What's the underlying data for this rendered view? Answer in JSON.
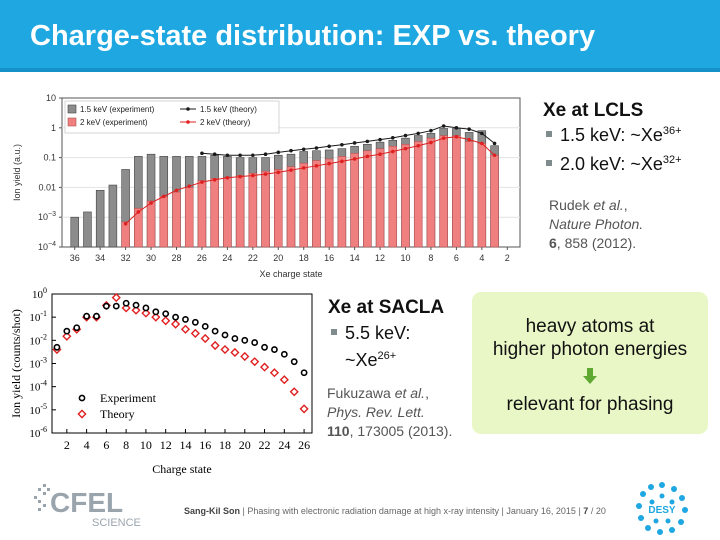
{
  "slide": {
    "title": "Charge-state distribution: EXP vs. theory"
  },
  "lcls": {
    "heading": "Xe at LCLS",
    "bullets": [
      {
        "text": "1.5 keV: ~Xe",
        "sup": "36+"
      },
      {
        "text": "2.0 keV: ~Xe",
        "sup": "32+"
      }
    ],
    "ref": {
      "authors": "Rudek",
      "etal": "et al.",
      "journal": "Nature Photon.",
      "volume": "6",
      "rest": ", 858 (2012)."
    }
  },
  "sacla": {
    "heading": "Xe at SACLA",
    "bullet": {
      "text1": "5.5 keV:",
      "text2": "~Xe",
      "sup": "26+"
    },
    "ref": {
      "authors": "Fukuzawa",
      "etal": "et al.",
      "journal": "Phys. Rev. Lett.",
      "volume": "110",
      "rest": ", 173005 (2013)."
    }
  },
  "note": {
    "line1": "heavy atoms at",
    "line2": "higher photon energies",
    "line3": "relevant for phasing",
    "arrow_color": "#5fa832"
  },
  "footer": {
    "author": "Sang-Kil Son",
    "text": "Phasing with electronic radiation damage at high x-ray intensity",
    "date": "January 16, 2015",
    "page": "7",
    "total": "/ 20",
    "cfel_logo": "CFEL",
    "cfel_sub": "SCIENCE",
    "desy_logo": "DESY"
  },
  "colors": {
    "header": "#1ea7e1",
    "exp15": "#8c8c8c",
    "exp20": "#f08080",
    "theory15": "#1a1a1a",
    "theory20": "#e02020"
  },
  "chart_data": [
    {
      "type": "bar",
      "title": "",
      "xlabel": "Xe charge state",
      "ylabel": "Ion yield (a.u.)",
      "yscale": "log",
      "ylim": [
        0.0001,
        10
      ],
      "xlim": [
        37,
        1
      ],
      "x_reversed": true,
      "xticks": [
        36,
        34,
        32,
        30,
        28,
        26,
        24,
        22,
        20,
        18,
        16,
        14,
        12,
        10,
        8,
        6,
        4,
        2
      ],
      "yticks": [
        {
          "v": 10,
          "b": "10",
          "e": ""
        },
        {
          "v": 1,
          "b": "1",
          "e": ""
        },
        {
          "v": 0.1,
          "b": "0.1",
          "e": ""
        },
        {
          "v": 0.01,
          "b": "0.01",
          "e": ""
        },
        {
          "v": 0.001,
          "b": "10",
          "e": "−3"
        },
        {
          "v": 0.0001,
          "b": "10",
          "e": "−4"
        }
      ],
      "legend": [
        "1.5 keV (experiment)",
        "2 keV (experiment)",
        "1.5 keV (theory)",
        "2 keV (theory)"
      ],
      "legend_position": "top-left",
      "charges": [
        36,
        35,
        34,
        33,
        32,
        31,
        30,
        29,
        28,
        27,
        26,
        25,
        24,
        23,
        22,
        21,
        20,
        19,
        18,
        17,
        16,
        15,
        14,
        13,
        12,
        11,
        10,
        9,
        8,
        7,
        6,
        5,
        4,
        3
      ],
      "series": [
        {
          "name": "1.5 keV (experiment)",
          "kind": "bar",
          "values": [
            0.001,
            0.0015,
            0.008,
            0.012,
            0.04,
            0.11,
            0.13,
            0.11,
            0.11,
            0.11,
            0.11,
            0.12,
            0.11,
            0.1,
            0.1,
            0.1,
            0.12,
            0.13,
            0.16,
            0.17,
            0.18,
            0.2,
            0.24,
            0.28,
            0.33,
            0.38,
            0.45,
            0.55,
            0.65,
            0.95,
            0.95,
            0.7,
            0.8,
            0.25
          ]
        },
        {
          "name": "2 keV (experiment)",
          "kind": "bar",
          "values": [
            null,
            null,
            null,
            null,
            0.0007,
            0.002,
            0.0035,
            0.005,
            0.007,
            0.01,
            0.017,
            0.02,
            0.022,
            0.025,
            0.03,
            0.035,
            0.04,
            0.05,
            0.065,
            0.08,
            0.09,
            0.11,
            0.14,
            0.17,
            0.2,
            0.24,
            0.28,
            0.35,
            0.45,
            0.55,
            0.55,
            0.35,
            0.3,
            0.12
          ]
        },
        {
          "name": "1.5 keV (theory)",
          "kind": "line",
          "values": [
            null,
            null,
            null,
            null,
            null,
            null,
            null,
            null,
            null,
            null,
            0.14,
            0.13,
            0.12,
            0.12,
            0.12,
            0.13,
            0.15,
            0.17,
            0.19,
            0.21,
            0.24,
            0.27,
            0.31,
            0.35,
            0.4,
            0.46,
            0.55,
            0.65,
            0.8,
            1.15,
            1.0,
            0.9,
            0.65,
            0.3
          ]
        },
        {
          "name": "2 keV (theory)",
          "kind": "line",
          "values": [
            null,
            null,
            null,
            null,
            0.0006,
            0.0015,
            0.003,
            0.005,
            0.008,
            0.011,
            0.015,
            0.018,
            0.021,
            0.023,
            0.025,
            0.028,
            0.032,
            0.038,
            0.045,
            0.053,
            0.063,
            0.075,
            0.09,
            0.11,
            0.13,
            0.16,
            0.2,
            0.25,
            0.32,
            0.45,
            0.5,
            0.4,
            0.3,
            0.12
          ]
        }
      ]
    },
    {
      "type": "scatter",
      "title": "",
      "xlabel": "Charge state",
      "ylabel": "Ion yield (counts/shot)",
      "yscale": "log",
      "ylim": [
        1e-06,
        1
      ],
      "xlim": [
        0.5,
        26.8
      ],
      "xticks": [
        2,
        4,
        6,
        8,
        10,
        12,
        14,
        16,
        18,
        20,
        22,
        24,
        26
      ],
      "yticks": [
        {
          "v": 1,
          "e": "0"
        },
        {
          "v": 0.1,
          "e": "-1"
        },
        {
          "v": 0.01,
          "e": "-2"
        },
        {
          "v": 0.001,
          "e": "-3"
        },
        {
          "v": 0.0001,
          "e": "-4"
        },
        {
          "v": 1e-05,
          "e": "-5"
        },
        {
          "v": 1e-06,
          "e": "-6"
        }
      ],
      "legend": [
        "Experiment",
        "Theory"
      ],
      "legend_position": "bottom-left",
      "x": [
        1,
        2,
        3,
        4,
        5,
        6,
        7,
        8,
        9,
        10,
        11,
        12,
        13,
        14,
        15,
        16,
        17,
        18,
        19,
        20,
        21,
        22,
        23,
        24,
        25,
        26
      ],
      "series": [
        {
          "name": "Experiment",
          "marker": "circle",
          "values": [
            0.005,
            0.025,
            0.035,
            0.11,
            0.11,
            0.3,
            0.3,
            0.4,
            0.33,
            0.25,
            0.17,
            0.14,
            0.1,
            0.08,
            0.06,
            0.04,
            0.025,
            0.017,
            0.012,
            0.01,
            0.008,
            0.005,
            0.004,
            0.0025,
            0.0012,
            0.0004
          ]
        },
        {
          "name": "Theory",
          "marker": "diamond",
          "values": [
            0.004,
            0.015,
            0.03,
            0.1,
            0.1,
            0.32,
            0.7,
            0.25,
            0.2,
            0.15,
            0.1,
            0.07,
            0.05,
            0.03,
            0.02,
            0.012,
            0.006,
            0.004,
            0.003,
            0.002,
            0.0012,
            0.0007,
            0.0004,
            0.0002,
            6e-05,
            1.1e-05
          ]
        }
      ]
    }
  ]
}
